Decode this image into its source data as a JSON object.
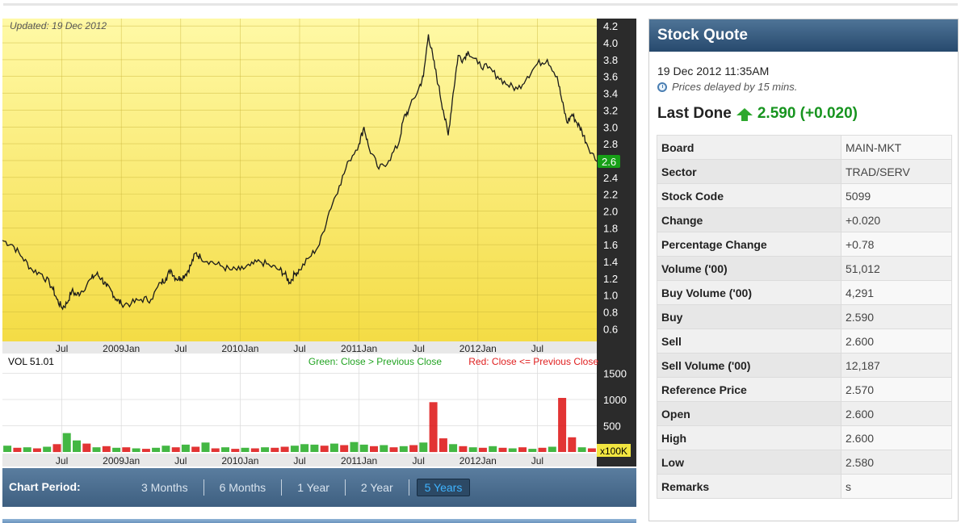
{
  "chart_data": {
    "type": "line",
    "updated": "Updated: 19 Dec 2012",
    "price": {
      "yticks": [
        "4.2",
        "4.0",
        "3.8",
        "3.6",
        "3.4",
        "3.2",
        "3.0",
        "2.8",
        "2.6",
        "2.4",
        "2.2",
        "2.0",
        "1.8",
        "1.6",
        "1.4",
        "1.2",
        "1.0",
        "0.8",
        "0.6"
      ],
      "ylim": [
        0.45,
        4.25
      ],
      "xlim": [
        0,
        60
      ],
      "xticks": [
        {
          "label": "Jul",
          "x": 6
        },
        {
          "label": "2009Jan",
          "x": 12
        },
        {
          "label": "Jul",
          "x": 18
        },
        {
          "label": "2010Jan",
          "x": 24
        },
        {
          "label": "Jul",
          "x": 30
        },
        {
          "label": "2011Jan",
          "x": 36
        },
        {
          "label": "Jul",
          "x": 42
        },
        {
          "label": "2012Jan",
          "x": 48
        },
        {
          "label": "Jul",
          "x": 54
        }
      ],
      "last_value_label": "2.6",
      "series": [
        {
          "x": 0,
          "y": 1.65
        },
        {
          "x": 1,
          "y": 1.6
        },
        {
          "x": 2,
          "y": 1.45
        },
        {
          "x": 3,
          "y": 1.3
        },
        {
          "x": 4,
          "y": 1.25
        },
        {
          "x": 5,
          "y": 1.1
        },
        {
          "x": 5.5,
          "y": 0.95
        },
        {
          "x": 6,
          "y": 0.85
        },
        {
          "x": 6.5,
          "y": 0.9
        },
        {
          "x": 7,
          "y": 1.05
        },
        {
          "x": 7.5,
          "y": 1.0
        },
        {
          "x": 8,
          "y": 1.05
        },
        {
          "x": 9,
          "y": 1.2
        },
        {
          "x": 9.5,
          "y": 1.25
        },
        {
          "x": 10,
          "y": 1.2
        },
        {
          "x": 10.5,
          "y": 1.1
        },
        {
          "x": 11,
          "y": 1.05
        },
        {
          "x": 11.5,
          "y": 0.95
        },
        {
          "x": 12,
          "y": 0.9
        },
        {
          "x": 13,
          "y": 0.9
        },
        {
          "x": 14,
          "y": 0.95
        },
        {
          "x": 15,
          "y": 0.95
        },
        {
          "x": 16,
          "y": 1.15
        },
        {
          "x": 16.5,
          "y": 1.2
        },
        {
          "x": 17,
          "y": 1.3
        },
        {
          "x": 17.5,
          "y": 1.2
        },
        {
          "x": 18,
          "y": 1.2
        },
        {
          "x": 18.5,
          "y": 1.25
        },
        {
          "x": 19,
          "y": 1.35
        },
        {
          "x": 19.5,
          "y": 1.5
        },
        {
          "x": 20,
          "y": 1.45
        },
        {
          "x": 21,
          "y": 1.4
        },
        {
          "x": 22,
          "y": 1.35
        },
        {
          "x": 23,
          "y": 1.3
        },
        {
          "x": 24,
          "y": 1.3
        },
        {
          "x": 25,
          "y": 1.35
        },
        {
          "x": 26,
          "y": 1.4
        },
        {
          "x": 27,
          "y": 1.35
        },
        {
          "x": 28,
          "y": 1.3
        },
        {
          "x": 28.5,
          "y": 1.25
        },
        {
          "x": 29,
          "y": 1.15
        },
        {
          "x": 29.5,
          "y": 1.25
        },
        {
          "x": 30,
          "y": 1.3
        },
        {
          "x": 31,
          "y": 1.45
        },
        {
          "x": 32,
          "y": 1.6
        },
        {
          "x": 33,
          "y": 2.0
        },
        {
          "x": 34,
          "y": 2.3
        },
        {
          "x": 35,
          "y": 2.6
        },
        {
          "x": 36,
          "y": 2.8
        },
        {
          "x": 36.5,
          "y": 3.0
        },
        {
          "x": 37,
          "y": 2.75
        },
        {
          "x": 38,
          "y": 2.5
        },
        {
          "x": 39,
          "y": 2.6
        },
        {
          "x": 40,
          "y": 2.8
        },
        {
          "x": 40.5,
          "y": 3.1
        },
        {
          "x": 41,
          "y": 3.2
        },
        {
          "x": 42,
          "y": 3.45
        },
        {
          "x": 42.5,
          "y": 3.6
        },
        {
          "x": 43,
          "y": 4.1
        },
        {
          "x": 43.5,
          "y": 3.8
        },
        {
          "x": 44,
          "y": 3.5
        },
        {
          "x": 44.5,
          "y": 3.2
        },
        {
          "x": 45,
          "y": 2.9
        },
        {
          "x": 45.5,
          "y": 3.4
        },
        {
          "x": 46,
          "y": 3.85
        },
        {
          "x": 46.5,
          "y": 3.8
        },
        {
          "x": 47,
          "y": 3.9
        },
        {
          "x": 48,
          "y": 3.75
        },
        {
          "x": 49,
          "y": 3.7
        },
        {
          "x": 50,
          "y": 3.6
        },
        {
          "x": 51,
          "y": 3.5
        },
        {
          "x": 52,
          "y": 3.45
        },
        {
          "x": 53,
          "y": 3.6
        },
        {
          "x": 54,
          "y": 3.75
        },
        {
          "x": 55,
          "y": 3.8
        },
        {
          "x": 56,
          "y": 3.6
        },
        {
          "x": 56.5,
          "y": 3.3
        },
        {
          "x": 57,
          "y": 3.05
        },
        {
          "x": 57.5,
          "y": 3.15
        },
        {
          "x": 58,
          "y": 3.05
        },
        {
          "x": 58.5,
          "y": 2.95
        },
        {
          "x": 59,
          "y": 2.8
        },
        {
          "x": 60,
          "y": 2.59
        }
      ]
    },
    "volume": {
      "label": "VOL  51.01",
      "legend_green": "Green: Close > Previous Close",
      "legend_red": "Red: Close <= Previous Close",
      "yticks": [
        "1500",
        "1000",
        "500"
      ],
      "unit": "x100K",
      "ylim": [
        0,
        1600
      ],
      "xticks": [
        {
          "label": "Jul",
          "x": 6
        },
        {
          "label": "2009Jan",
          "x": 12
        },
        {
          "label": "Jul",
          "x": 18
        },
        {
          "label": "2010Jan",
          "x": 24
        },
        {
          "label": "Jul",
          "x": 30
        },
        {
          "label": "2011Jan",
          "x": 36
        },
        {
          "label": "Jul",
          "x": 42
        },
        {
          "label": "2012Jan",
          "x": 48
        },
        {
          "label": "Jul",
          "x": 54
        }
      ],
      "bars": [
        {
          "x": 0.5,
          "v": 120,
          "up": true
        },
        {
          "x": 1.5,
          "v": 80,
          "up": false
        },
        {
          "x": 2.5,
          "v": 90,
          "up": true
        },
        {
          "x": 3.5,
          "v": 70,
          "up": false
        },
        {
          "x": 4.5,
          "v": 100,
          "up": true
        },
        {
          "x": 5.5,
          "v": 150,
          "up": false
        },
        {
          "x": 6.5,
          "v": 360,
          "up": true
        },
        {
          "x": 7.5,
          "v": 220,
          "up": true
        },
        {
          "x": 8.5,
          "v": 160,
          "up": false
        },
        {
          "x": 9.5,
          "v": 90,
          "up": true
        },
        {
          "x": 10.5,
          "v": 110,
          "up": false
        },
        {
          "x": 11.5,
          "v": 80,
          "up": true
        },
        {
          "x": 12.5,
          "v": 90,
          "up": false
        },
        {
          "x": 13.5,
          "v": 70,
          "up": true
        },
        {
          "x": 14.5,
          "v": 60,
          "up": false
        },
        {
          "x": 15.5,
          "v": 80,
          "up": true
        },
        {
          "x": 16.5,
          "v": 120,
          "up": true
        },
        {
          "x": 17.5,
          "v": 90,
          "up": false
        },
        {
          "x": 18.5,
          "v": 140,
          "up": true
        },
        {
          "x": 19.5,
          "v": 100,
          "up": false
        },
        {
          "x": 20.5,
          "v": 180,
          "up": true
        },
        {
          "x": 21.5,
          "v": 70,
          "up": false
        },
        {
          "x": 22.5,
          "v": 90,
          "up": true
        },
        {
          "x": 23.5,
          "v": 60,
          "up": false
        },
        {
          "x": 24.5,
          "v": 80,
          "up": true
        },
        {
          "x": 25.5,
          "v": 70,
          "up": false
        },
        {
          "x": 26.5,
          "v": 90,
          "up": true
        },
        {
          "x": 27.5,
          "v": 80,
          "up": false
        },
        {
          "x": 28.5,
          "v": 100,
          "up": false
        },
        {
          "x": 29.5,
          "v": 120,
          "up": true
        },
        {
          "x": 30.5,
          "v": 150,
          "up": true
        },
        {
          "x": 31.5,
          "v": 140,
          "up": true
        },
        {
          "x": 32.5,
          "v": 120,
          "up": false
        },
        {
          "x": 33.5,
          "v": 160,
          "up": true
        },
        {
          "x": 34.5,
          "v": 130,
          "up": false
        },
        {
          "x": 35.5,
          "v": 190,
          "up": true
        },
        {
          "x": 36.5,
          "v": 140,
          "up": true
        },
        {
          "x": 37.5,
          "v": 110,
          "up": false
        },
        {
          "x": 38.5,
          "v": 130,
          "up": true
        },
        {
          "x": 39.5,
          "v": 90,
          "up": false
        },
        {
          "x": 40.5,
          "v": 110,
          "up": true
        },
        {
          "x": 41.5,
          "v": 130,
          "up": false
        },
        {
          "x": 42.5,
          "v": 180,
          "up": true
        },
        {
          "x": 43.5,
          "v": 950,
          "up": false
        },
        {
          "x": 44.5,
          "v": 260,
          "up": false
        },
        {
          "x": 45.5,
          "v": 150,
          "up": true
        },
        {
          "x": 46.5,
          "v": 110,
          "up": false
        },
        {
          "x": 47.5,
          "v": 90,
          "up": true
        },
        {
          "x": 48.5,
          "v": 80,
          "up": false
        },
        {
          "x": 49.5,
          "v": 110,
          "up": true
        },
        {
          "x": 50.5,
          "v": 80,
          "up": false
        },
        {
          "x": 51.5,
          "v": 70,
          "up": true
        },
        {
          "x": 52.5,
          "v": 90,
          "up": false
        },
        {
          "x": 53.5,
          "v": 60,
          "up": true
        },
        {
          "x": 54.5,
          "v": 80,
          "up": false
        },
        {
          "x": 55.5,
          "v": 100,
          "up": true
        },
        {
          "x": 56.5,
          "v": 1030,
          "up": false
        },
        {
          "x": 57.5,
          "v": 280,
          "up": false
        },
        {
          "x": 58.5,
          "v": 90,
          "up": true
        },
        {
          "x": 59.5,
          "v": 70,
          "up": false
        }
      ]
    }
  },
  "colors": {
    "area_top": "#fff9a6",
    "area_bottom": "#f4dc45",
    "axis_panel": "#2b2b2b",
    "up": "#22aa22",
    "down": "#dd1111",
    "last_tag": "#17a017"
  },
  "period": {
    "title": "Chart Period:",
    "options": [
      "3 Months",
      "6 Months",
      "1 Year",
      "2 Year",
      "5 Years"
    ],
    "active": "5 Years"
  },
  "quote": {
    "header": "Stock Quote",
    "datetime": "19 Dec 2012 11:35AM",
    "delay_note": "Prices delayed by 15 mins.",
    "last_done_label": "Last Done",
    "last_done_value": "2.590 (+0.020)",
    "rows": [
      {
        "label": "Board",
        "value": "MAIN-MKT"
      },
      {
        "label": "Sector",
        "value": "TRAD/SERV"
      },
      {
        "label": "Stock Code",
        "value": "5099"
      },
      {
        "label": "Change",
        "value": "+0.020"
      },
      {
        "label": "Percentage Change",
        "value": "+0.78"
      },
      {
        "label": "Volume ('00)",
        "value": "51,012"
      },
      {
        "label": "Buy Volume ('00)",
        "value": "4,291"
      },
      {
        "label": "Buy",
        "value": "2.590"
      },
      {
        "label": "Sell",
        "value": "2.600"
      },
      {
        "label": "Sell Volume ('00)",
        "value": "12,187"
      },
      {
        "label": "Reference Price",
        "value": "2.570"
      },
      {
        "label": "Open",
        "value": "2.600"
      },
      {
        "label": "High",
        "value": "2.600"
      },
      {
        "label": "Low",
        "value": "2.580"
      },
      {
        "label": "Remarks",
        "value": "s"
      }
    ]
  }
}
